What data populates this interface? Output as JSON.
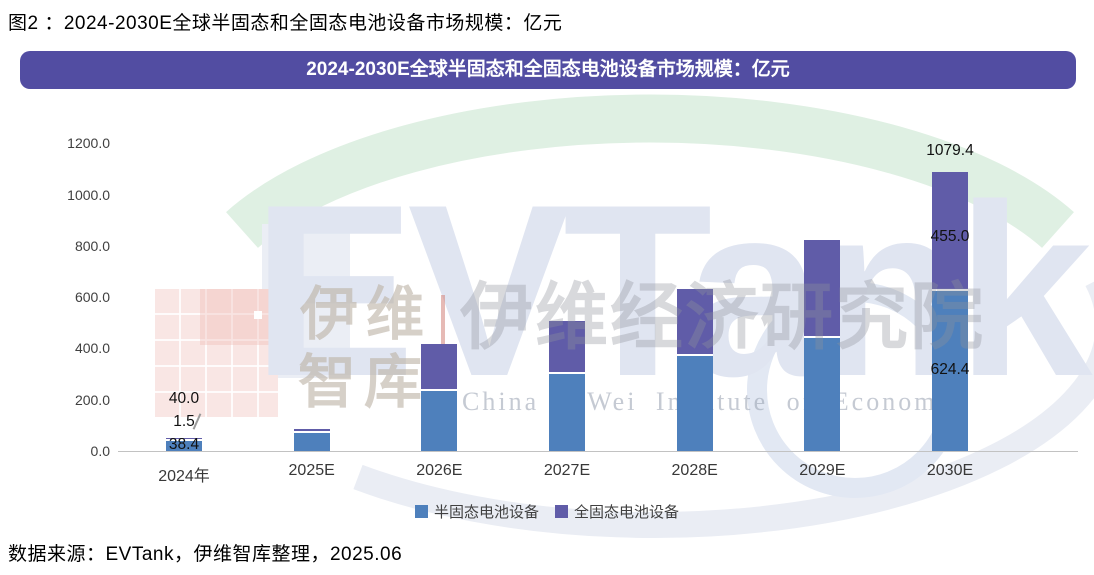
{
  "figure": {
    "caption": "图2 ：2024-2030E全球半固态和全固态电池设备市场规模：亿元"
  },
  "chart_data": {
    "type": "bar",
    "stacked": true,
    "title": "2024-2030E全球半固态和全固态电池设备市场规模：亿元",
    "unit": "亿元",
    "categories": [
      "2024年",
      "2025E",
      "2026E",
      "2027E",
      "2028E",
      "2029E",
      "2030E"
    ],
    "series": [
      {
        "name": "半固态电池设备",
        "color": "#4E80BC",
        "values": [
          38.4,
          70,
          235,
          300,
          370,
          440,
          624.4
        ]
      },
      {
        "name": "全固态电池设备",
        "color": "#605CA8",
        "values": [
          1.5,
          8,
          175,
          200,
          253,
          377,
          455.0
        ]
      }
    ],
    "visible_value_labels": {
      "2024年": {
        "total": "40.0",
        "全固态电池设备": "1.5",
        "半固态电池设备": "38.4"
      },
      "2030E": {
        "total": "1079.4",
        "全固态电池设备": "455.0",
        "半固态电池设备": "624.4"
      }
    },
    "ylim": [
      0,
      1200
    ],
    "ytick_step": 200,
    "ytick_labels": [
      "0.0",
      "200.0",
      "400.0",
      "600.0",
      "800.0",
      "1000.0",
      "1200.0"
    ],
    "gridlines": false,
    "legend_position": "bottom"
  },
  "source": {
    "text": "数据来源：EVTank，伊维智库整理，2025.06"
  },
  "watermark": {
    "brand": "EVTank",
    "cn_1": "伊维",
    "cn_2": "智库",
    "cn_full": "伊维经济研究院",
    "en": "China YiWei Institute of Economic"
  },
  "colors": {
    "banner_bg": "#524DA2",
    "banner_text": "#FFFFFF",
    "bar_semi_solid": "#4E80BC",
    "bar_all_solid": "#605CA8",
    "axis_line": "#C2C2C2"
  }
}
